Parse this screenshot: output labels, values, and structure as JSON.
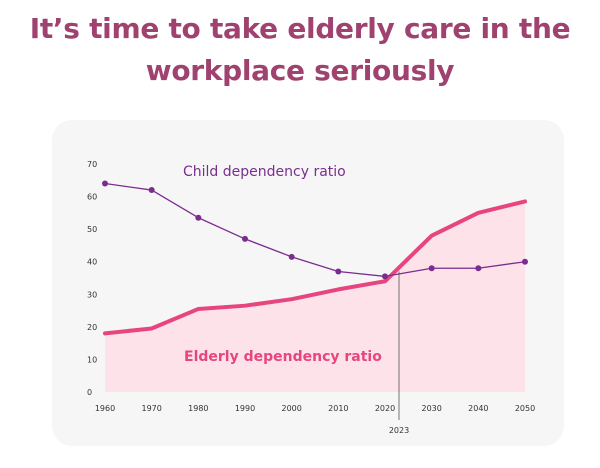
{
  "headline": {
    "line1": "It’s time to take elderly care in the",
    "line2": "workplace seriously"
  },
  "colors": {
    "headline": "#a0426f",
    "child_series": "#7b2d8e",
    "elderly_series": "#e64580",
    "elderly_fill": "#fde3e9",
    "card_background": "#f6f6f6",
    "marker_line": "#555555"
  },
  "chart_data": {
    "type": "line",
    "x": [
      1960,
      1970,
      1980,
      1990,
      2000,
      2010,
      2020,
      2030,
      2040,
      2050
    ],
    "xlim": [
      1960,
      2050
    ],
    "ylim": [
      0,
      70
    ],
    "y_ticks": [
      0,
      10,
      20,
      30,
      40,
      50,
      60,
      70
    ],
    "x_ticks": [
      1960,
      1970,
      1980,
      1990,
      2000,
      2010,
      2020,
      2030,
      2040,
      2050
    ],
    "grid": false,
    "series": [
      {
        "name": "Child dependency ratio",
        "style": "thin line with dot markers",
        "points": [
          [
            1960,
            64
          ],
          [
            1970,
            62
          ],
          [
            1980,
            53.5
          ],
          [
            1990,
            47
          ],
          [
            2000,
            41.5
          ],
          [
            2010,
            37
          ],
          [
            2020,
            35.5
          ],
          [
            2030,
            38
          ],
          [
            2040,
            38
          ],
          [
            2050,
            40
          ]
        ]
      },
      {
        "name": "Elderly dependency ratio",
        "style": "thick line with shaded area",
        "points": [
          [
            1960,
            18
          ],
          [
            1970,
            19.5
          ],
          [
            1980,
            25.5
          ],
          [
            1990,
            26.5
          ],
          [
            2000,
            28.5
          ],
          [
            2010,
            31.5
          ],
          [
            2020,
            34
          ],
          [
            2030,
            48
          ],
          [
            2040,
            55
          ],
          [
            2050,
            58.5
          ]
        ]
      }
    ],
    "annotations": [
      {
        "type": "vertical-line",
        "x": 2023,
        "label": "2023"
      }
    ]
  }
}
